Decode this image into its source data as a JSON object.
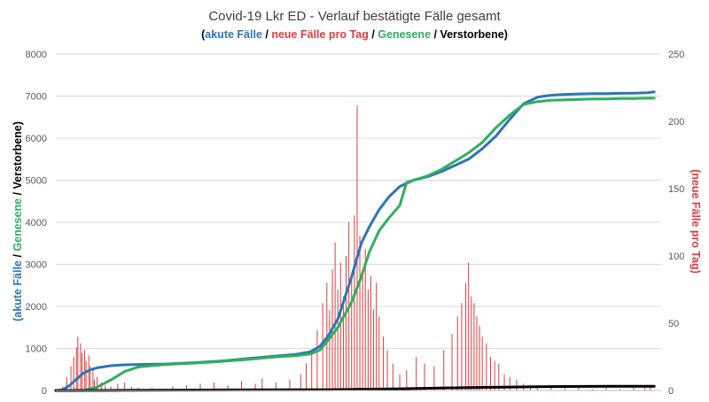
{
  "chart_data": {
    "type": "line",
    "title": "Covid-19 Lkr ED - Verlauf bestätigte Fälle gesamt",
    "subtitle_parts": [
      {
        "text": "(",
        "color": "#000000"
      },
      {
        "text": "akute Fälle",
        "color": "#2E75B6"
      },
      {
        "text": " / ",
        "color": "#000000"
      },
      {
        "text": "neue Fälle pro Tag",
        "color": "#E03C3C"
      },
      {
        "text": " / ",
        "color": "#000000"
      },
      {
        "text": "Genesene",
        "color": "#2EAF5C"
      },
      {
        "text": " / Verstorbene)",
        "color": "#000000"
      }
    ],
    "ylabel_parts": [
      {
        "text": "(akute Fälle",
        "color": "#2E75B6"
      },
      {
        "text": " / ",
        "color": "#000000"
      },
      {
        "text": "Genesene",
        "color": "#2EAF5C"
      },
      {
        "text": " / Verstorbene)",
        "color": "#000000"
      }
    ],
    "y2label": "(neue Fälle pro Tag)",
    "y2label_color": "#E03C3C",
    "ylim": [
      0,
      8000
    ],
    "y2lim": [
      0,
      250
    ],
    "yticks": [
      "0",
      "1000",
      "2000",
      "3000",
      "4000",
      "5000",
      "6000",
      "7000",
      "8000"
    ],
    "y2ticks": [
      "0",
      "50",
      "100",
      "150",
      "200",
      "250"
    ],
    "grid": true,
    "x_days": 440,
    "series": [
      {
        "label": "akute Fälle",
        "color": "#2E75B6",
        "x": [
          0,
          5,
          10,
          15,
          20,
          25,
          30,
          40,
          50,
          60,
          80,
          100,
          120,
          140,
          160,
          175,
          185,
          192,
          198,
          205,
          210,
          215,
          222,
          228,
          235,
          242,
          250,
          260,
          270,
          280,
          290,
          300,
          310,
          320,
          330,
          340,
          350,
          355,
          360,
          370,
          380,
          390,
          400,
          410,
          420,
          430,
          435
        ],
        "y": [
          0,
          20,
          120,
          270,
          410,
          490,
          540,
          590,
          610,
          620,
          630,
          660,
          700,
          760,
          820,
          860,
          920,
          1050,
          1300,
          1700,
          2200,
          2700,
          3500,
          3900,
          4300,
          4600,
          4850,
          5000,
          5080,
          5200,
          5350,
          5500,
          5750,
          6050,
          6450,
          6820,
          6970,
          7000,
          7020,
          7040,
          7050,
          7060,
          7060,
          7065,
          7070,
          7080,
          7100
        ]
      },
      {
        "label": "Genesene",
        "color": "#2EAF5C",
        "x": [
          0,
          20,
          30,
          40,
          50,
          60,
          80,
          100,
          120,
          140,
          160,
          175,
          185,
          192,
          198,
          205,
          210,
          215,
          222,
          228,
          235,
          242,
          250,
          255,
          260,
          270,
          280,
          290,
          300,
          310,
          320,
          330,
          340,
          350,
          360,
          370,
          380,
          390,
          400,
          410,
          420,
          430,
          435
        ],
        "y": [
          0,
          0,
          80,
          250,
          450,
          560,
          620,
          650,
          690,
          740,
          800,
          830,
          870,
          960,
          1200,
          1500,
          1800,
          2100,
          2700,
          3300,
          3800,
          4100,
          4400,
          4950,
          5000,
          5100,
          5250,
          5450,
          5650,
          5900,
          6250,
          6550,
          6800,
          6870,
          6900,
          6910,
          6920,
          6930,
          6930,
          6940,
          6940,
          6950,
          6950
        ]
      },
      {
        "label": "Verstorbene",
        "color": "#000000",
        "x": [
          0,
          50,
          100,
          150,
          200,
          250,
          300,
          350,
          400,
          435
        ],
        "y": [
          0,
          5,
          10,
          15,
          20,
          40,
          70,
          90,
          100,
          100
        ]
      }
    ],
    "bars": {
      "label": "neue Fälle pro Tag",
      "color": "#E03C3C",
      "axis": "right",
      "values": [
        {
          "x": 5,
          "v": 3
        },
        {
          "x": 8,
          "v": 10
        },
        {
          "x": 11,
          "v": 18
        },
        {
          "x": 13,
          "v": 25
        },
        {
          "x": 15,
          "v": 32
        },
        {
          "x": 16,
          "v": 40
        },
        {
          "x": 18,
          "v": 35
        },
        {
          "x": 19,
          "v": 28
        },
        {
          "x": 21,
          "v": 30
        },
        {
          "x": 22,
          "v": 22
        },
        {
          "x": 24,
          "v": 26
        },
        {
          "x": 25,
          "v": 18
        },
        {
          "x": 27,
          "v": 15
        },
        {
          "x": 28,
          "v": 8
        },
        {
          "x": 30,
          "v": 10
        },
        {
          "x": 33,
          "v": 6
        },
        {
          "x": 36,
          "v": 4
        },
        {
          "x": 40,
          "v": 3
        },
        {
          "x": 45,
          "v": 5
        },
        {
          "x": 50,
          "v": 6
        },
        {
          "x": 55,
          "v": 3
        },
        {
          "x": 60,
          "v": 2
        },
        {
          "x": 70,
          "v": 2
        },
        {
          "x": 85,
          "v": 3
        },
        {
          "x": 95,
          "v": 4
        },
        {
          "x": 105,
          "v": 5
        },
        {
          "x": 115,
          "v": 6
        },
        {
          "x": 125,
          "v": 4
        },
        {
          "x": 135,
          "v": 7
        },
        {
          "x": 145,
          "v": 5
        },
        {
          "x": 150,
          "v": 9
        },
        {
          "x": 160,
          "v": 6
        },
        {
          "x": 170,
          "v": 8
        },
        {
          "x": 178,
          "v": 12
        },
        {
          "x": 182,
          "v": 20
        },
        {
          "x": 186,
          "v": 28
        },
        {
          "x": 190,
          "v": 45
        },
        {
          "x": 194,
          "v": 65
        },
        {
          "x": 197,
          "v": 80
        },
        {
          "x": 199,
          "v": 60
        },
        {
          "x": 201,
          "v": 90
        },
        {
          "x": 203,
          "v": 110
        },
        {
          "x": 205,
          "v": 75
        },
        {
          "x": 207,
          "v": 95
        },
        {
          "x": 209,
          "v": 70
        },
        {
          "x": 211,
          "v": 100
        },
        {
          "x": 213,
          "v": 125
        },
        {
          "x": 215,
          "v": 85
        },
        {
          "x": 217,
          "v": 130
        },
        {
          "x": 219,
          "v": 212
        },
        {
          "x": 221,
          "v": 115
        },
        {
          "x": 223,
          "v": 90
        },
        {
          "x": 225,
          "v": 105
        },
        {
          "x": 227,
          "v": 75
        },
        {
          "x": 229,
          "v": 85
        },
        {
          "x": 231,
          "v": 60
        },
        {
          "x": 233,
          "v": 80
        },
        {
          "x": 235,
          "v": 55
        },
        {
          "x": 238,
          "v": 40
        },
        {
          "x": 241,
          "v": 30
        },
        {
          "x": 245,
          "v": 20
        },
        {
          "x": 250,
          "v": 12
        },
        {
          "x": 255,
          "v": 15
        },
        {
          "x": 262,
          "v": 25
        },
        {
          "x": 268,
          "v": 20
        },
        {
          "x": 275,
          "v": 18
        },
        {
          "x": 282,
          "v": 30
        },
        {
          "x": 288,
          "v": 42
        },
        {
          "x": 292,
          "v": 55
        },
        {
          "x": 295,
          "v": 65
        },
        {
          "x": 298,
          "v": 80
        },
        {
          "x": 300,
          "v": 95
        },
        {
          "x": 302,
          "v": 70
        },
        {
          "x": 304,
          "v": 65
        },
        {
          "x": 306,
          "v": 55
        },
        {
          "x": 308,
          "v": 48
        },
        {
          "x": 310,
          "v": 40
        },
        {
          "x": 313,
          "v": 35
        },
        {
          "x": 316,
          "v": 25
        },
        {
          "x": 319,
          "v": 22
        },
        {
          "x": 322,
          "v": 20
        },
        {
          "x": 326,
          "v": 12
        },
        {
          "x": 330,
          "v": 10
        },
        {
          "x": 335,
          "v": 8
        },
        {
          "x": 340,
          "v": 5
        },
        {
          "x": 345,
          "v": 4
        },
        {
          "x": 350,
          "v": 3
        },
        {
          "x": 360,
          "v": 2
        },
        {
          "x": 370,
          "v": 3
        },
        {
          "x": 380,
          "v": 2
        },
        {
          "x": 390,
          "v": 1
        },
        {
          "x": 400,
          "v": 2
        },
        {
          "x": 410,
          "v": 1
        },
        {
          "x": 420,
          "v": 2
        },
        {
          "x": 428,
          "v": 4
        },
        {
          "x": 432,
          "v": 3
        }
      ]
    }
  }
}
